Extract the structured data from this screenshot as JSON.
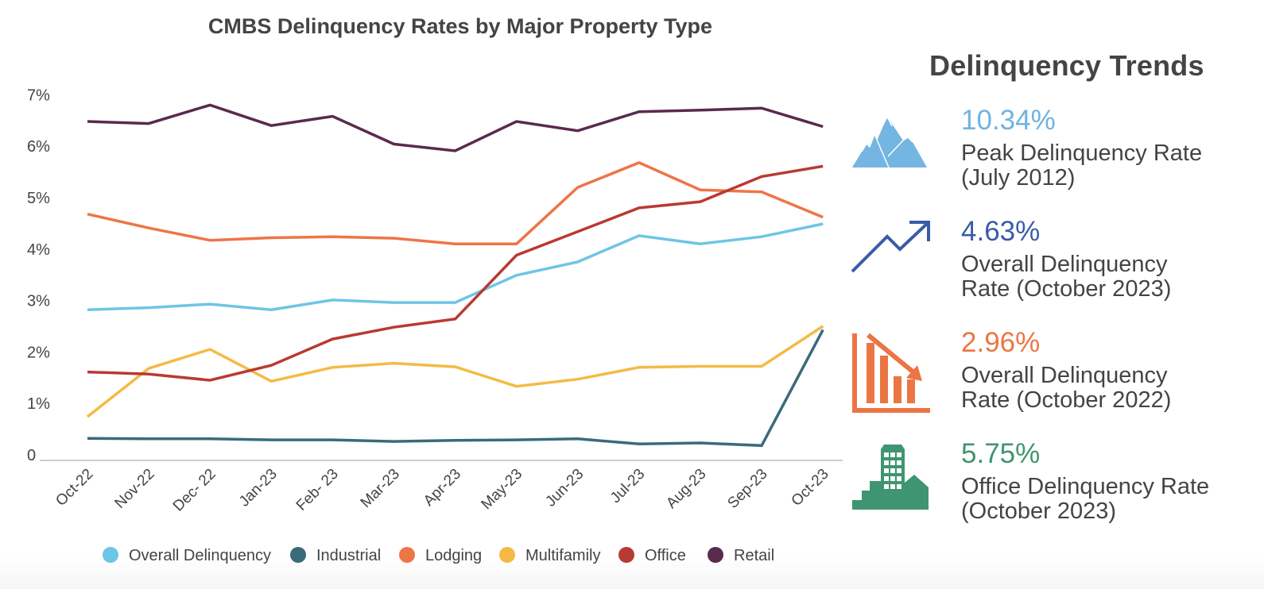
{
  "chart_data": {
    "type": "line",
    "title": "CMBS Delinquency Rates by Major Property Type",
    "xlabel": "",
    "ylabel": "",
    "ylim": [
      0,
      7
    ],
    "yticks": [
      0,
      1,
      2,
      3,
      4,
      5,
      6,
      7
    ],
    "ytick_labels": [
      "0",
      "1%",
      "2%",
      "3%",
      "4%",
      "5%",
      "6%",
      "7%"
    ],
    "grid": false,
    "legend_position": "bottom",
    "categories": [
      "Oct-22",
      "Nov-22",
      "Dec- 22",
      "Jan-23",
      "Feb- 23",
      "Mar-23",
      "Apr-23",
      "May-23",
      "Jun-23",
      "Jul-23",
      "Aug-23",
      "Sep-23",
      "Oct-23"
    ],
    "series": [
      {
        "name": "Overall Delinquency",
        "color": "#6EC5E6",
        "values": [
          2.96,
          3.0,
          3.07,
          2.96,
          3.15,
          3.1,
          3.1,
          3.63,
          3.89,
          4.4,
          4.24,
          4.38,
          4.63
        ]
      },
      {
        "name": "Industrial",
        "color": "#3A6B7A",
        "values": [
          0.46,
          0.45,
          0.45,
          0.43,
          0.43,
          0.4,
          0.42,
          0.43,
          0.45,
          0.35,
          0.37,
          0.32,
          2.57
        ]
      },
      {
        "name": "Lodging",
        "color": "#EE7546",
        "values": [
          4.82,
          4.55,
          4.31,
          4.36,
          4.38,
          4.35,
          4.24,
          4.24,
          5.34,
          5.82,
          5.29,
          5.25,
          4.76
        ]
      },
      {
        "name": "Multifamily",
        "color": "#F5BA45",
        "values": [
          0.88,
          1.82,
          2.19,
          1.57,
          1.84,
          1.92,
          1.85,
          1.47,
          1.61,
          1.84,
          1.86,
          1.86,
          2.64
        ]
      },
      {
        "name": "Office",
        "color": "#B93A32",
        "values": [
          1.75,
          1.71,
          1.59,
          1.88,
          2.39,
          2.62,
          2.78,
          4.02,
          4.48,
          4.94,
          5.06,
          5.55,
          5.75
        ]
      },
      {
        "name": "Retail",
        "color": "#5A2A4E",
        "values": [
          6.62,
          6.58,
          6.94,
          6.54,
          6.72,
          6.18,
          6.05,
          6.62,
          6.44,
          6.81,
          6.84,
          6.88,
          6.52
        ]
      }
    ]
  },
  "panel": {
    "title": "Delinquency Trends",
    "stats": [
      {
        "icon": "mountain-peak-icon",
        "value": "10.34%",
        "color": "#6FB3E0",
        "line1": "Peak Delinquency Rate",
        "line2": "(July 2012)"
      },
      {
        "icon": "trend-up-arrow-icon",
        "value": "4.63%",
        "color": "#3A5BA8",
        "line1": "Overall Delinquency",
        "line2": "Rate (October 2023)"
      },
      {
        "icon": "bar-chart-down-icon",
        "value": "2.96%",
        "color": "#EC7544",
        "line1": "Overall Delinquency",
        "line2": "Rate (October 2022)"
      },
      {
        "icon": "office-building-icon",
        "value": "5.75%",
        "color": "#3F9471",
        "line1": "Office Delinquency Rate",
        "line2": "(October 2023)"
      }
    ]
  }
}
